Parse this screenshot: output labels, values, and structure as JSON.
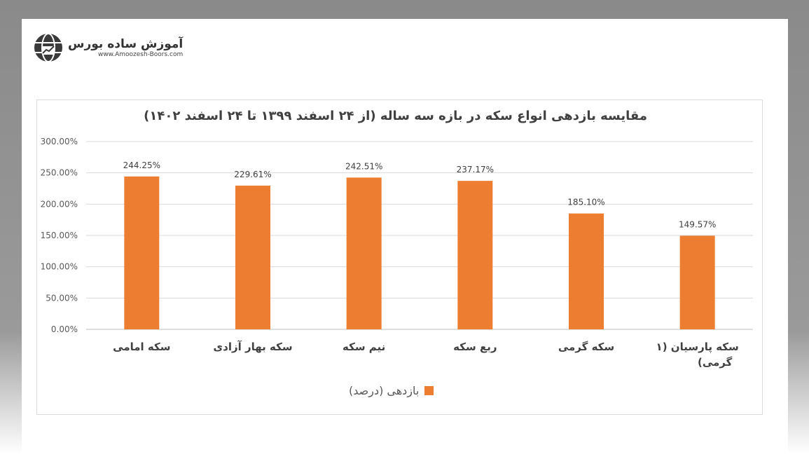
{
  "logo": {
    "name_fa": "آموزش ساده بورس",
    "url": "www.Amoozesh-Boors.com"
  },
  "chart_data": {
    "type": "bar",
    "title": "مقایسه بازدهی انواع سکه در بازه سه ساله (از ۲۴ اسفند ۱۳۹۹ تا ۲۴ اسفند ۱۴۰۲)",
    "categories": [
      "سکه امامی",
      "سکه بهار آزادی",
      "نیم سکه",
      "ربع سکه",
      "سکه گرمی",
      "سکه پارسیان (۱ گرمی)"
    ],
    "series": [
      {
        "name": "بازدهی (درصد)",
        "values": [
          244.25,
          229.61,
          242.51,
          237.17,
          185.1,
          149.57
        ],
        "color": "#ed7d31"
      }
    ],
    "data_labels": [
      "244.25%",
      "229.61%",
      "242.51%",
      "237.17%",
      "185.10%",
      "149.57%"
    ],
    "yticks": [
      "0.00%",
      "50.00%",
      "100.00%",
      "150.00%",
      "200.00%",
      "250.00%",
      "300.00%"
    ],
    "ylim": [
      0,
      300
    ],
    "grid": true,
    "legend": "bottom"
  }
}
